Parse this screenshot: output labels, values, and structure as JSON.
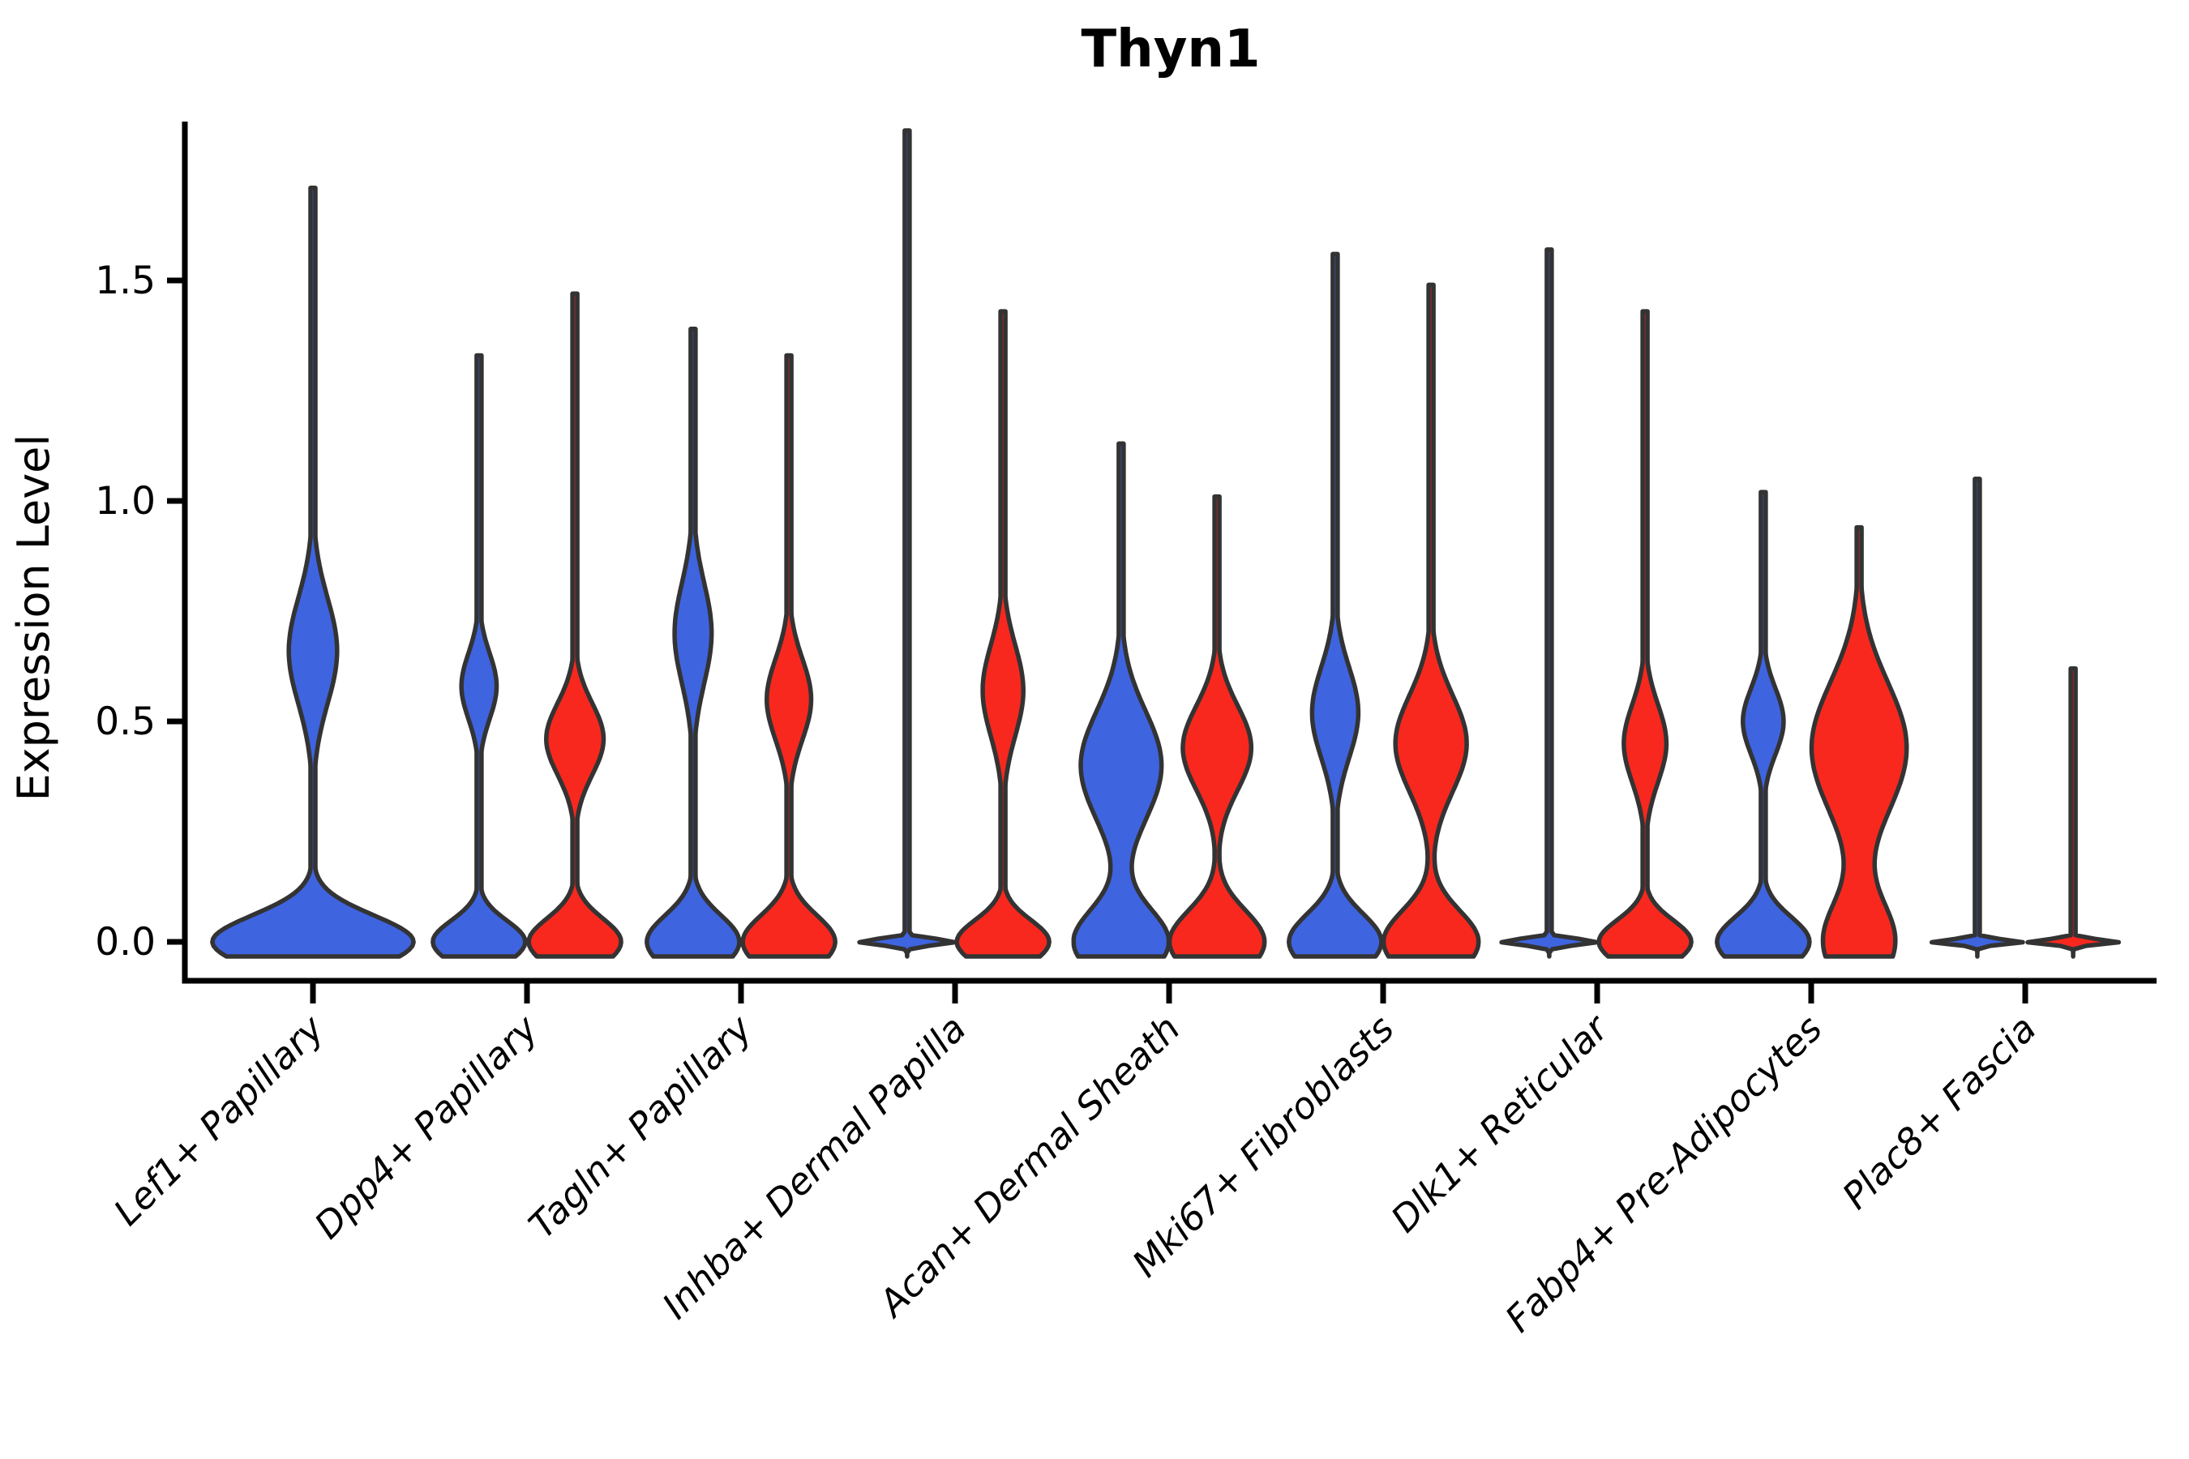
{
  "chart_data": {
    "type": "violin",
    "title": "Thyn1",
    "ylabel": "Expression Level",
    "xlabel": "",
    "grid": false,
    "legend": "none",
    "ytick_labels": [
      "0.0",
      "0.5",
      "1.0",
      "1.5"
    ],
    "ytick_values": [
      0.0,
      0.5,
      1.0,
      1.5
    ],
    "ylim": [
      -0.06,
      1.92
    ],
    "categories": [
      "Lef1+ Papillary",
      "Dpp4+ Papillary",
      "Tagln+ Papillary",
      "Inhba+ Dermal Papilla",
      "Acan+ Dermal Sheath",
      "Mki67+ Fibroblasts",
      "Dlk1+ Reticular",
      "Fabp4+ Pre-Adipocytes",
      "Plac8+ Fascia"
    ],
    "colors": {
      "blue": "#3E64E0",
      "red": "#F8281E",
      "outline": "#333333",
      "axis": "#000000"
    },
    "violins": [
      {
        "category_index": 0,
        "color": "blue",
        "offset": 0.0,
        "halfwidth": 0.47,
        "max": 1.71,
        "base": {
          "w": 1.0,
          "sigma": 0.085
        },
        "bulge": {
          "center": 0.66,
          "sigma": 0.17,
          "w": 0.24
        }
      },
      {
        "category_index": 1,
        "color": "blue",
        "offset": -0.224,
        "halfwidth": 0.216,
        "max": 1.33,
        "base": {
          "w": 1.0,
          "sigma": 0.068
        },
        "bulge": {
          "center": 0.58,
          "sigma": 0.105,
          "w": 0.38
        }
      },
      {
        "category_index": 1,
        "color": "red",
        "offset": 0.224,
        "halfwidth": 0.216,
        "max": 1.47,
        "base": {
          "w": 1.0,
          "sigma": 0.075
        },
        "bulge": {
          "center": 0.46,
          "sigma": 0.115,
          "w": 0.62
        }
      },
      {
        "category_index": 2,
        "color": "blue",
        "offset": -0.224,
        "halfwidth": 0.216,
        "max": 1.39,
        "base": {
          "w": 1.0,
          "sigma": 0.085
        },
        "bulge": {
          "center": 0.7,
          "sigma": 0.16,
          "w": 0.4
        }
      },
      {
        "category_index": 2,
        "color": "red",
        "offset": 0.224,
        "halfwidth": 0.216,
        "max": 1.33,
        "base": {
          "w": 1.0,
          "sigma": 0.085
        },
        "bulge": {
          "center": 0.55,
          "sigma": 0.13,
          "w": 0.48
        }
      },
      {
        "category_index": 3,
        "color": "blue",
        "offset": -0.224,
        "halfwidth": 0.225,
        "max": 1.84,
        "base": {
          "w": 1.0,
          "sigma": 0.01
        },
        "bulge": null
      },
      {
        "category_index": 3,
        "color": "red",
        "offset": 0.224,
        "halfwidth": 0.216,
        "max": 1.43,
        "base": {
          "w": 1.0,
          "sigma": 0.07
        },
        "bulge": {
          "center": 0.57,
          "sigma": 0.145,
          "w": 0.44
        }
      },
      {
        "category_index": 4,
        "color": "blue",
        "offset": -0.224,
        "halfwidth": 0.222,
        "max": 1.13,
        "base": {
          "w": 1.0,
          "sigma": 0.105
        },
        "bulge": {
          "center": 0.4,
          "sigma": 0.175,
          "w": 0.85
        }
      },
      {
        "category_index": 4,
        "color": "red",
        "offset": 0.224,
        "halfwidth": 0.222,
        "max": 1.01,
        "base": {
          "w": 1.0,
          "sigma": 0.1
        },
        "bulge": {
          "center": 0.44,
          "sigma": 0.135,
          "w": 0.72
        }
      },
      {
        "category_index": 5,
        "color": "blue",
        "offset": -0.224,
        "halfwidth": 0.216,
        "max": 1.56,
        "base": {
          "w": 1.0,
          "sigma": 0.09
        },
        "bulge": {
          "center": 0.52,
          "sigma": 0.145,
          "w": 0.5
        }
      },
      {
        "category_index": 5,
        "color": "red",
        "offset": 0.224,
        "halfwidth": 0.222,
        "max": 1.49,
        "base": {
          "w": 1.0,
          "sigma": 0.1
        },
        "bulge": {
          "center": 0.45,
          "sigma": 0.155,
          "w": 0.75
        }
      },
      {
        "category_index": 6,
        "color": "blue",
        "offset": -0.224,
        "halfwidth": 0.225,
        "max": 1.57,
        "base": {
          "w": 1.0,
          "sigma": 0.01
        },
        "bulge": null
      },
      {
        "category_index": 6,
        "color": "red",
        "offset": 0.224,
        "halfwidth": 0.216,
        "max": 1.43,
        "base": {
          "w": 1.0,
          "sigma": 0.07
        },
        "bulge": {
          "center": 0.45,
          "sigma": 0.125,
          "w": 0.46
        }
      },
      {
        "category_index": 7,
        "color": "blue",
        "offset": -0.224,
        "halfwidth": 0.216,
        "max": 1.02,
        "base": {
          "w": 1.0,
          "sigma": 0.08
        },
        "bulge": {
          "center": 0.5,
          "sigma": 0.105,
          "w": 0.44
        }
      },
      {
        "category_index": 7,
        "color": "red",
        "offset": 0.224,
        "halfwidth": 0.222,
        "max": 0.94,
        "base": {
          "w": 0.75,
          "sigma": 0.13
        },
        "bulge": {
          "center": 0.44,
          "sigma": 0.21,
          "w": 1.0
        }
      },
      {
        "category_index": 8,
        "color": "blue",
        "offset": -0.224,
        "halfwidth": 0.216,
        "max": 1.05,
        "base": {
          "w": 1.0,
          "sigma": 0.008
        },
        "bulge": null
      },
      {
        "category_index": 8,
        "color": "red",
        "offset": 0.224,
        "halfwidth": 0.216,
        "max": 0.62,
        "base": {
          "w": 1.0,
          "sigma": 0.008
        },
        "bulge": null
      }
    ]
  }
}
